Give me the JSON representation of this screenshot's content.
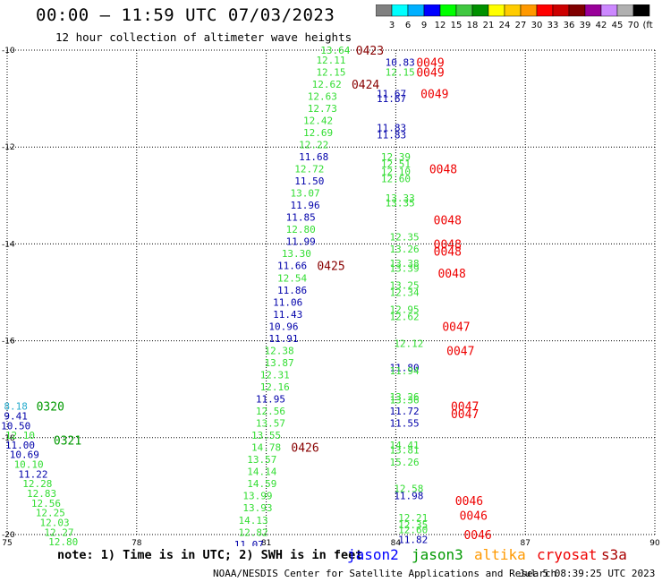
{
  "header": {
    "title": "00:00 – 11:59 UTC 07/03/2023",
    "subtitle": "12 hour collection of altimeter wave heights"
  },
  "colorbar": {
    "ticks": [
      "3",
      "6",
      "9",
      "12",
      "15",
      "18",
      "21",
      "24",
      "27",
      "30",
      "33",
      "36",
      "39",
      "42",
      "45",
      "70",
      "(ft)"
    ],
    "colors": [
      "#808080",
      "#00ffff",
      "#00b0ff",
      "#0000ff",
      "#00ff00",
      "#40c840",
      "#009000",
      "#ffff00",
      "#ffcc00",
      "#ff9900",
      "#ff0000",
      "#cc0000",
      "#800000",
      "#990099",
      "#cc88ff",
      "#b0b0b0",
      "#000000"
    ]
  },
  "footer": {
    "note": "note: 1) Time is in UTC; 2) SWH is in feet",
    "legend": [
      {
        "name": "jason2",
        "color": "#0000ff"
      },
      {
        "name": "jason3",
        "color": "#009900"
      },
      {
        "name": "altika",
        "color": "#ff9900"
      },
      {
        "name": "cryosat",
        "color": "#ee0000"
      },
      {
        "name": "s3a",
        "color": "#aa0000"
      }
    ],
    "credit": "NOAA/NESDIS Center for Satellite Applications and Research",
    "timestamp": "Jul  5 08:39:25 UTC 2023"
  },
  "chart_data": {
    "type": "scatter",
    "title": "00:00 – 11:59 UTC 07/03/2023",
    "subtitle": "12 hour collection of altimeter wave heights",
    "xlim": [
      75,
      90
    ],
    "ylim": [
      -20,
      -10
    ],
    "x_ticks": [
      "75",
      "78",
      "81",
      "84",
      "87",
      "90"
    ],
    "y_ticks": [
      "-10",
      "-12",
      "-14",
      "-16",
      "-18",
      "-20"
    ],
    "grid": true,
    "colors": {
      "light_green": "#33dd33",
      "navy": "#0000aa",
      "teal": "#22aacc",
      "dark_green": "#009900",
      "red": "#ee0000",
      "maroon": "#880000"
    },
    "swh_labels": [
      {
        "x": 82.6,
        "y": -10.0,
        "text": "13.64",
        "color": "light_green"
      },
      {
        "x": 82.5,
        "y": -10.2,
        "text": "12.11",
        "color": "light_green"
      },
      {
        "x": 82.5,
        "y": -10.45,
        "text": "12.15",
        "color": "light_green"
      },
      {
        "x": 82.4,
        "y": -10.7,
        "text": "12.62",
        "color": "light_green"
      },
      {
        "x": 82.3,
        "y": -10.95,
        "text": "12.63",
        "color": "light_green"
      },
      {
        "x": 82.3,
        "y": -11.2,
        "text": "12.73",
        "color": "light_green"
      },
      {
        "x": 82.2,
        "y": -11.45,
        "text": "12.42",
        "color": "light_green"
      },
      {
        "x": 82.2,
        "y": -11.7,
        "text": "12.69",
        "color": "light_green"
      },
      {
        "x": 82.1,
        "y": -11.95,
        "text": "12.22",
        "color": "light_green"
      },
      {
        "x": 82.1,
        "y": -12.2,
        "text": "11.68",
        "color": "navy"
      },
      {
        "x": 82.0,
        "y": -12.45,
        "text": "12.72",
        "color": "light_green"
      },
      {
        "x": 82.0,
        "y": -12.7,
        "text": "11.50",
        "color": "navy"
      },
      {
        "x": 81.9,
        "y": -12.95,
        "text": "13.07",
        "color": "light_green"
      },
      {
        "x": 81.9,
        "y": -13.2,
        "text": "11.96",
        "color": "navy"
      },
      {
        "x": 81.8,
        "y": -13.45,
        "text": "11.85",
        "color": "navy"
      },
      {
        "x": 81.8,
        "y": -13.7,
        "text": "12.80",
        "color": "light_green"
      },
      {
        "x": 81.8,
        "y": -13.95,
        "text": "11.99",
        "color": "navy"
      },
      {
        "x": 81.7,
        "y": -14.2,
        "text": "13.30",
        "color": "light_green"
      },
      {
        "x": 81.6,
        "y": -14.45,
        "text": "11.66",
        "color": "navy"
      },
      {
        "x": 81.6,
        "y": -14.7,
        "text": "12.54",
        "color": "light_green"
      },
      {
        "x": 81.6,
        "y": -14.95,
        "text": "11.86",
        "color": "navy"
      },
      {
        "x": 81.5,
        "y": -15.2,
        "text": "11.06",
        "color": "navy"
      },
      {
        "x": 81.5,
        "y": -15.45,
        "text": "11.43",
        "color": "navy"
      },
      {
        "x": 81.4,
        "y": -15.7,
        "text": "10.96",
        "color": "navy"
      },
      {
        "x": 81.4,
        "y": -15.95,
        "text": "11.91",
        "color": "navy"
      },
      {
        "x": 81.3,
        "y": -16.2,
        "text": "12.38",
        "color": "light_green"
      },
      {
        "x": 81.3,
        "y": -16.45,
        "text": "13.87",
        "color": "light_green"
      },
      {
        "x": 81.2,
        "y": -16.7,
        "text": "12.31",
        "color": "light_green"
      },
      {
        "x": 81.2,
        "y": -16.95,
        "text": "12.16",
        "color": "light_green"
      },
      {
        "x": 81.1,
        "y": -17.2,
        "text": "11.95",
        "color": "navy"
      },
      {
        "x": 81.1,
        "y": -17.45,
        "text": "12.56",
        "color": "light_green"
      },
      {
        "x": 81.1,
        "y": -17.7,
        "text": "13.57",
        "color": "light_green"
      },
      {
        "x": 81.0,
        "y": -17.95,
        "text": "13.55",
        "color": "light_green"
      },
      {
        "x": 81.0,
        "y": -18.2,
        "text": "14.78",
        "color": "light_green"
      },
      {
        "x": 80.9,
        "y": -18.45,
        "text": "13.57",
        "color": "light_green"
      },
      {
        "x": 80.9,
        "y": -18.7,
        "text": "14.14",
        "color": "light_green"
      },
      {
        "x": 80.9,
        "y": -18.95,
        "text": "14.59",
        "color": "light_green"
      },
      {
        "x": 80.8,
        "y": -19.2,
        "text": "13.99",
        "color": "light_green"
      },
      {
        "x": 80.8,
        "y": -19.45,
        "text": "13.93",
        "color": "light_green"
      },
      {
        "x": 80.7,
        "y": -19.7,
        "text": "14.13",
        "color": "light_green"
      },
      {
        "x": 80.7,
        "y": -19.95,
        "text": "12.82",
        "color": "light_green"
      },
      {
        "x": 80.6,
        "y": -20.2,
        "text": "11.07",
        "color": "navy"
      },
      {
        "x": 80.6,
        "y": -20.45,
        "text": "11.05",
        "color": "navy"
      },
      {
        "x": 84.1,
        "y": -10.25,
        "text": "10.83",
        "color": "navy"
      },
      {
        "x": 84.1,
        "y": -10.45,
        "text": "12.15",
        "color": "light_green"
      },
      {
        "x": 83.9,
        "y": -10.9,
        "text": "11.67",
        "color": "navy"
      },
      {
        "x": 83.9,
        "y": -11.0,
        "text": "11.67",
        "color": "navy"
      },
      {
        "x": 83.9,
        "y": -11.6,
        "text": "11.83",
        "color": "navy"
      },
      {
        "x": 83.9,
        "y": -11.75,
        "text": "11.83",
        "color": "navy"
      },
      {
        "x": 84.0,
        "y": -12.2,
        "text": "12.39",
        "color": "light_green"
      },
      {
        "x": 84.0,
        "y": -12.35,
        "text": "12.51",
        "color": "light_green"
      },
      {
        "x": 84.0,
        "y": -12.5,
        "text": "12.10",
        "color": "light_green"
      },
      {
        "x": 84.0,
        "y": -12.65,
        "text": "12.60",
        "color": "light_green"
      },
      {
        "x": 84.1,
        "y": -13.05,
        "text": "13.33",
        "color": "light_green"
      },
      {
        "x": 84.1,
        "y": -13.15,
        "text": "13.35",
        "color": "light_green"
      },
      {
        "x": 84.2,
        "y": -13.85,
        "text": "12.35",
        "color": "light_green"
      },
      {
        "x": 84.2,
        "y": -14.1,
        "text": "13.26",
        "color": "light_green"
      },
      {
        "x": 84.2,
        "y": -14.4,
        "text": "13.38",
        "color": "light_green"
      },
      {
        "x": 84.2,
        "y": -14.5,
        "text": "13.39",
        "color": "light_green"
      },
      {
        "x": 84.2,
        "y": -14.85,
        "text": "13.25",
        "color": "light_green"
      },
      {
        "x": 84.2,
        "y": -15.0,
        "text": "12.34",
        "color": "light_green"
      },
      {
        "x": 84.2,
        "y": -15.35,
        "text": "12.95",
        "color": "light_green"
      },
      {
        "x": 84.2,
        "y": -15.5,
        "text": "12.62",
        "color": "light_green"
      },
      {
        "x": 84.3,
        "y": -16.05,
        "text": "12.12",
        "color": "light_green"
      },
      {
        "x": 84.2,
        "y": -16.55,
        "text": "11.80",
        "color": "navy"
      },
      {
        "x": 84.2,
        "y": -16.62,
        "text": "11.94",
        "color": "light_green"
      },
      {
        "x": 84.2,
        "y": -17.15,
        "text": "13.26",
        "color": "light_green"
      },
      {
        "x": 84.2,
        "y": -17.22,
        "text": "13.36",
        "color": "light_green"
      },
      {
        "x": 84.2,
        "y": -17.45,
        "text": "11.72",
        "color": "navy"
      },
      {
        "x": 84.2,
        "y": -17.7,
        "text": "11.55",
        "color": "navy"
      },
      {
        "x": 84.2,
        "y": -18.15,
        "text": "14.41",
        "color": "light_green"
      },
      {
        "x": 84.2,
        "y": -18.25,
        "text": "13.81",
        "color": "light_green"
      },
      {
        "x": 84.2,
        "y": -18.5,
        "text": "15.26",
        "color": "light_green"
      },
      {
        "x": 84.3,
        "y": -19.05,
        "text": "12.58",
        "color": "light_green"
      },
      {
        "x": 84.3,
        "y": -19.2,
        "text": "11.98",
        "color": "navy"
      },
      {
        "x": 84.4,
        "y": -19.65,
        "text": "12.21",
        "color": "light_green"
      },
      {
        "x": 84.4,
        "y": -19.8,
        "text": "12.35",
        "color": "light_green"
      },
      {
        "x": 84.4,
        "y": -19.9,
        "text": "12.60",
        "color": "light_green"
      },
      {
        "x": 84.4,
        "y": -20.1,
        "text": "11.82",
        "color": "navy"
      },
      {
        "x": 84.4,
        "y": -20.35,
        "text": "12.22",
        "color": "light_green"
      },
      {
        "x": 84.4,
        "y": -20.55,
        "text": "13.01",
        "color": "light_green"
      },
      {
        "x": 84.4,
        "y": -20.7,
        "text": "12.88",
        "color": "light_green"
      },
      {
        "x": 84.5,
        "y": -21.2,
        "text": "13.66",
        "color": "light_green"
      },
      {
        "x": 75.2,
        "y": -17.35,
        "text": "8.18",
        "color": "teal"
      },
      {
        "x": 75.2,
        "y": -17.55,
        "text": "9.41",
        "color": "navy"
      },
      {
        "x": 75.2,
        "y": -17.75,
        "text": "10.50",
        "color": "navy"
      },
      {
        "x": 75.3,
        "y": -17.95,
        "text": "12.10",
        "color": "light_green"
      },
      {
        "x": 75.3,
        "y": -18.15,
        "text": "11.00",
        "color": "navy"
      },
      {
        "x": 75.4,
        "y": -18.35,
        "text": "10.69",
        "color": "navy"
      },
      {
        "x": 75.5,
        "y": -18.55,
        "text": "10.10",
        "color": "light_green"
      },
      {
        "x": 75.6,
        "y": -18.75,
        "text": "11.22",
        "color": "navy"
      },
      {
        "x": 75.7,
        "y": -18.95,
        "text": "12.28",
        "color": "light_green"
      },
      {
        "x": 75.8,
        "y": -19.15,
        "text": "12.83",
        "color": "light_green"
      },
      {
        "x": 75.9,
        "y": -19.35,
        "text": "12.56",
        "color": "light_green"
      },
      {
        "x": 76.0,
        "y": -19.55,
        "text": "12.25",
        "color": "light_green"
      },
      {
        "x": 76.1,
        "y": -19.75,
        "text": "12.03",
        "color": "light_green"
      },
      {
        "x": 76.2,
        "y": -19.95,
        "text": "12.27",
        "color": "light_green"
      },
      {
        "x": 76.3,
        "y": -20.15,
        "text": "12.80",
        "color": "light_green"
      },
      {
        "x": 76.4,
        "y": -20.35,
        "text": "12.23",
        "color": "light_green"
      }
    ],
    "time_labels": [
      {
        "x": 83.4,
        "y": -10.0,
        "text": "0423",
        "color": "maroon"
      },
      {
        "x": 83.3,
        "y": -10.7,
        "text": "0424",
        "color": "maroon"
      },
      {
        "x": 82.5,
        "y": -14.45,
        "text": "0425",
        "color": "maroon"
      },
      {
        "x": 81.9,
        "y": -18.2,
        "text": "0426",
        "color": "maroon"
      },
      {
        "x": 76.0,
        "y": -17.35,
        "text": "0320",
        "color": "dark_green"
      },
      {
        "x": 76.4,
        "y": -18.05,
        "text": "0321",
        "color": "dark_green"
      },
      {
        "x": 84.8,
        "y": -10.25,
        "text": "0049",
        "color": "red"
      },
      {
        "x": 84.8,
        "y": -10.45,
        "text": "0049",
        "color": "red"
      },
      {
        "x": 84.9,
        "y": -10.9,
        "text": "0049",
        "color": "red"
      },
      {
        "x": 85.1,
        "y": -12.45,
        "text": "0048",
        "color": "red"
      },
      {
        "x": 85.2,
        "y": -13.5,
        "text": "0048",
        "color": "red"
      },
      {
        "x": 85.2,
        "y": -14.0,
        "text": "0048",
        "color": "red"
      },
      {
        "x": 85.2,
        "y": -14.15,
        "text": "0048",
        "color": "red"
      },
      {
        "x": 85.3,
        "y": -14.6,
        "text": "0048",
        "color": "red"
      },
      {
        "x": 85.4,
        "y": -15.7,
        "text": "0047",
        "color": "red"
      },
      {
        "x": 85.5,
        "y": -16.2,
        "text": "0047",
        "color": "red"
      },
      {
        "x": 85.6,
        "y": -17.35,
        "text": "0047",
        "color": "red"
      },
      {
        "x": 85.6,
        "y": -17.5,
        "text": "0047",
        "color": "red"
      },
      {
        "x": 85.7,
        "y": -19.3,
        "text": "0046",
        "color": "red"
      },
      {
        "x": 85.8,
        "y": -19.6,
        "text": "0046",
        "color": "red"
      },
      {
        "x": 85.9,
        "y": -20.0,
        "text": "0046",
        "color": "red"
      }
    ]
  }
}
